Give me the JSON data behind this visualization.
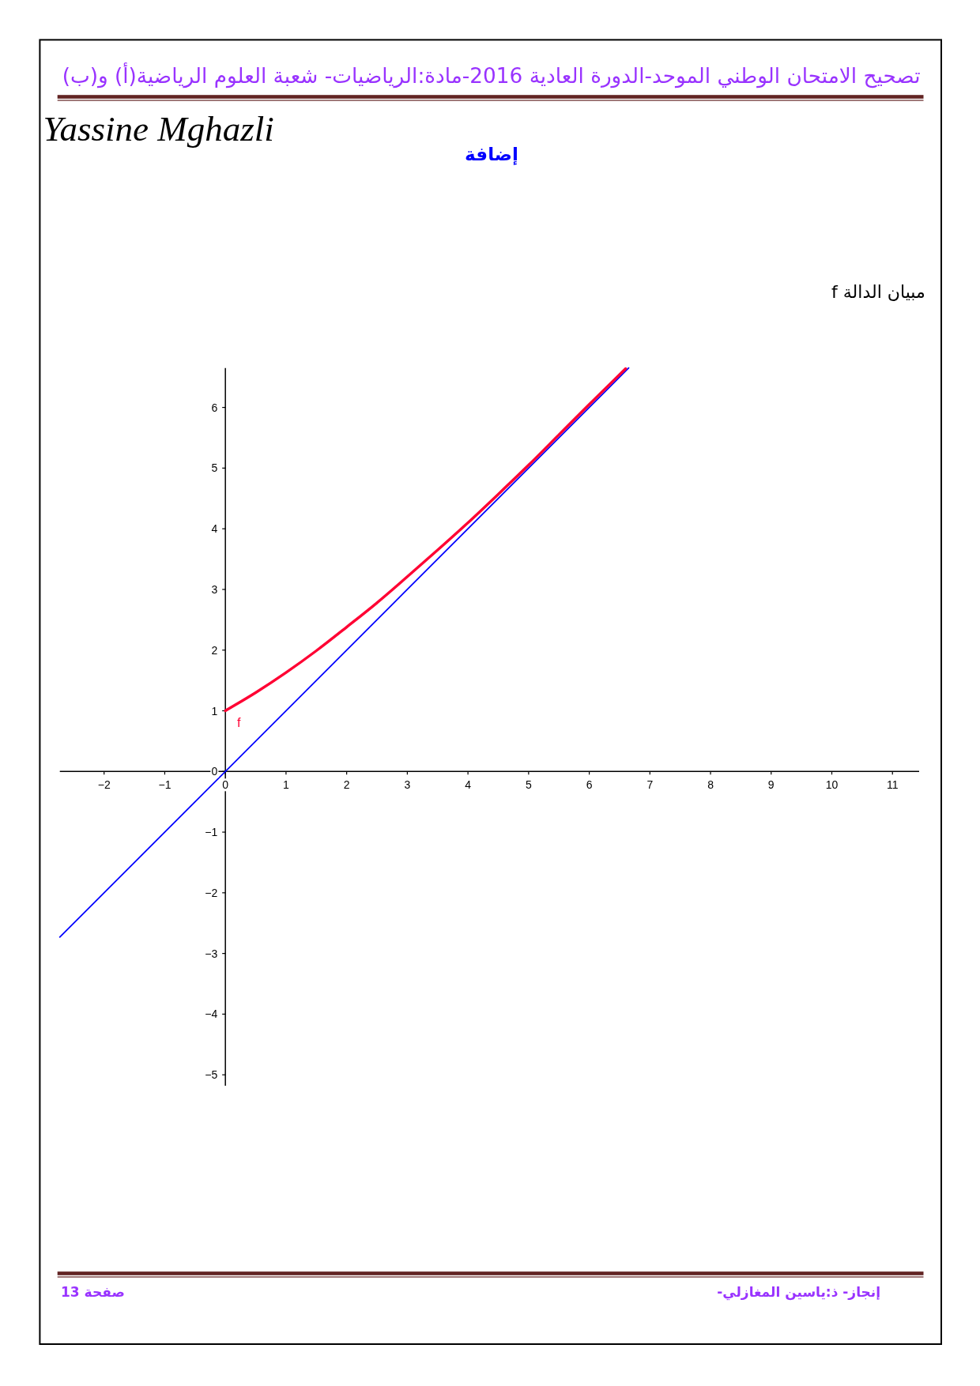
{
  "chart_data": {
    "type": "line",
    "title": "مبيان الدالة f",
    "annotations": [
      "تصحيح الامتحان الوطني الموحد-الدورة العادية 2016-مادة:الرياضيات- شعبة العلوم الرياضية(أ) و(ب)",
      "Yassine Mghazli",
      "إضافة",
      "إنجاز- ذ:ياسين المغازلي-",
      "صفحة 13"
    ],
    "series": [
      {
        "name": "f",
        "color": "#ff0033",
        "x": [
          0,
          0.5,
          1,
          1.5,
          2,
          2.5,
          3,
          3.5,
          4,
          4.5,
          5,
          5.5,
          6,
          6.6
        ],
        "values": [
          1,
          1.3,
          1.63,
          1.99,
          2.38,
          2.78,
          3.21,
          3.65,
          4.1,
          4.57,
          5.05,
          5.55,
          6.05,
          6.64
        ]
      },
      {
        "color": "#0000ff",
        "x": [
          -2.73,
          6.65
        ],
        "values": [
          -2.73,
          6.65
        ]
      }
    ],
    "xlim": [
      -2.73,
      11.44
    ],
    "ylim": [
      -5.18,
      6.65
    ],
    "xticks": [
      -2,
      -1,
      0,
      1,
      2,
      3,
      4,
      5,
      6,
      7,
      8,
      9,
      10,
      11
    ],
    "yticks": [
      -5,
      -4,
      -3,
      -2,
      -1,
      0,
      1,
      2,
      3,
      4,
      5,
      6
    ]
  }
}
